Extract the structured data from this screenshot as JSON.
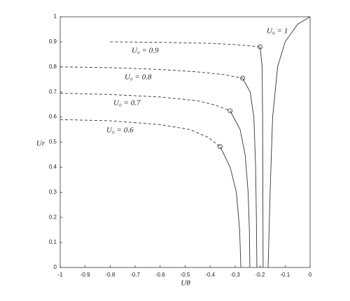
{
  "chart_data": {
    "type": "line",
    "xlabel": "Uθ",
    "ylabel": "Ur",
    "xlim": [
      -1,
      0
    ],
    "ylim": [
      0,
      1
    ],
    "xticks": [
      -1,
      -0.9,
      -0.8,
      -0.7,
      -0.6,
      -0.5,
      -0.4,
      -0.3,
      -0.2,
      -0.1,
      0
    ],
    "yticks": [
      0,
      0.1,
      0.2,
      0.3,
      0.4,
      0.5,
      0.6,
      0.7,
      0.8,
      0.9,
      1
    ],
    "grid": false,
    "series": [
      {
        "color": "#333333",
        "style": "dashed",
        "x": [
          -0.8,
          -0.6,
          -0.4,
          -0.3,
          -0.2
        ],
        "values": [
          0.9,
          0.898,
          0.894,
          0.889,
          0.88
        ]
      },
      {
        "color": "#333333",
        "style": "solid",
        "x": [
          -0.2,
          -0.192,
          -0.19,
          -0.189,
          -0.188
        ],
        "values": [
          0.88,
          0.8,
          0.6,
          0.3,
          0
        ]
      },
      {
        "color": "#333333",
        "style": "dashed",
        "x": [
          -1,
          -0.8,
          -0.6,
          -0.45,
          -0.35,
          -0.27
        ],
        "values": [
          0.8,
          0.797,
          0.79,
          0.78,
          0.77,
          0.755
        ]
      },
      {
        "color": "#333333",
        "style": "solid",
        "x": [
          -0.27,
          -0.24,
          -0.225,
          -0.218,
          -0.215,
          -0.213
        ],
        "values": [
          0.755,
          0.7,
          0.6,
          0.4,
          0.2,
          0
        ]
      },
      {
        "color": "#333333",
        "style": "dashed",
        "x": [
          -1,
          -0.8,
          -0.6,
          -0.45,
          -0.38,
          -0.32
        ],
        "values": [
          0.695,
          0.69,
          0.68,
          0.665,
          0.648,
          0.625
        ]
      },
      {
        "color": "#333333",
        "style": "solid",
        "x": [
          -0.32,
          -0.28,
          -0.26,
          -0.248,
          -0.243,
          -0.241
        ],
        "values": [
          0.625,
          0.55,
          0.45,
          0.3,
          0.15,
          0
        ]
      },
      {
        "color": "#333333",
        "style": "dashed",
        "x": [
          -1,
          -0.8,
          -0.6,
          -0.48,
          -0.41,
          -0.36
        ],
        "values": [
          0.59,
          0.585,
          0.57,
          0.55,
          0.52,
          0.482
        ]
      },
      {
        "color": "#333333",
        "style": "solid",
        "x": [
          -0.36,
          -0.32,
          -0.295,
          -0.282,
          -0.277
        ],
        "values": [
          0.482,
          0.4,
          0.3,
          0.15,
          0
        ]
      },
      {
        "color": "#333333",
        "style": "solid",
        "x": [
          -0.168,
          -0.16,
          -0.15,
          -0.13,
          -0.1,
          -0.05,
          0
        ],
        "values": [
          0,
          0.3,
          0.6,
          0.8,
          0.9,
          0.97,
          1
        ]
      }
    ],
    "markers": {
      "x": [
        -0.2,
        -0.27,
        -0.32,
        -0.36
      ],
      "values": [
        0.88,
        0.755,
        0.625,
        0.482
      ]
    },
    "annotations": [
      "U₀ = 1",
      "U₀ = 0.9",
      "U₀ = 0.8",
      "U₀ = 0.7",
      "U₀ = 0.6"
    ]
  }
}
